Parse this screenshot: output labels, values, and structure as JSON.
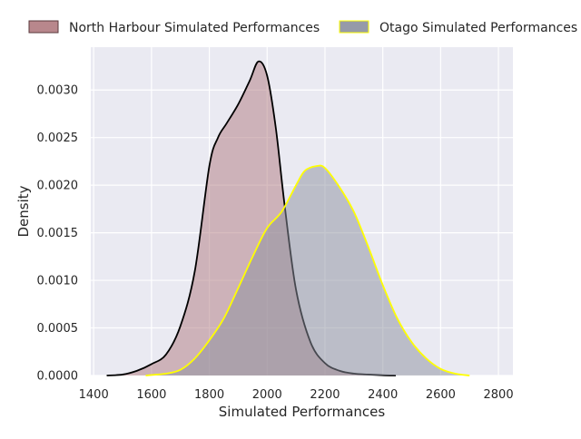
{
  "chart_data": {
    "type": "area",
    "title": "",
    "xlabel": "Simulated Performances",
    "ylabel": "Density",
    "xlim": [
      1390,
      2850
    ],
    "ylim": [
      0,
      0.00345
    ],
    "xticks": [
      "1400",
      "1600",
      "1800",
      "2000",
      "2200",
      "2400",
      "2600",
      "2800"
    ],
    "xtick_values": [
      1400,
      1600,
      1800,
      2000,
      2200,
      2400,
      2600,
      2800
    ],
    "yticks": [
      "0.0000",
      "0.0005",
      "0.0010",
      "0.0015",
      "0.0020",
      "0.0025",
      "0.0030"
    ],
    "ytick_values": [
      0,
      0.0005,
      0.001,
      0.0015,
      0.002,
      0.0025,
      0.003
    ],
    "grid": true,
    "legend_position": "top",
    "series": [
      {
        "name": "North Harbour Simulated Performances",
        "fill": "#b07a80",
        "edge": "#000000",
        "x": [
          1445,
          1500,
          1550,
          1600,
          1650,
          1700,
          1750,
          1800,
          1830,
          1860,
          1900,
          1940,
          1970,
          2000,
          2030,
          2060,
          2100,
          2150,
          2200,
          2250,
          2300,
          2350,
          2400,
          2445
        ],
        "y": [
          0,
          1e-05,
          5e-05,
          0.00012,
          0.00022,
          0.00052,
          0.0011,
          0.0022,
          0.0025,
          0.00265,
          0.00285,
          0.0031,
          0.0033,
          0.00315,
          0.0026,
          0.0018,
          0.0009,
          0.00035,
          0.00013,
          5e-05,
          2e-05,
          1e-05,
          3e-06,
          0
        ]
      },
      {
        "name": "Otago Simulated Performances",
        "fill": "#8b8f9e",
        "edge": "#ffff00",
        "x": [
          1580,
          1650,
          1700,
          1750,
          1800,
          1850,
          1900,
          1950,
          2000,
          2050,
          2100,
          2130,
          2170,
          2200,
          2250,
          2300,
          2350,
          2400,
          2450,
          2500,
          2550,
          2600,
          2650,
          2700
        ],
        "y": [
          0,
          2e-05,
          6e-05,
          0.00018,
          0.00037,
          0.0006,
          0.00092,
          0.00125,
          0.00155,
          0.00172,
          0.002,
          0.00215,
          0.0022,
          0.00218,
          0.00198,
          0.00172,
          0.00135,
          0.00095,
          0.0006,
          0.00035,
          0.00018,
          7e-05,
          2e-05,
          0
        ]
      }
    ]
  }
}
